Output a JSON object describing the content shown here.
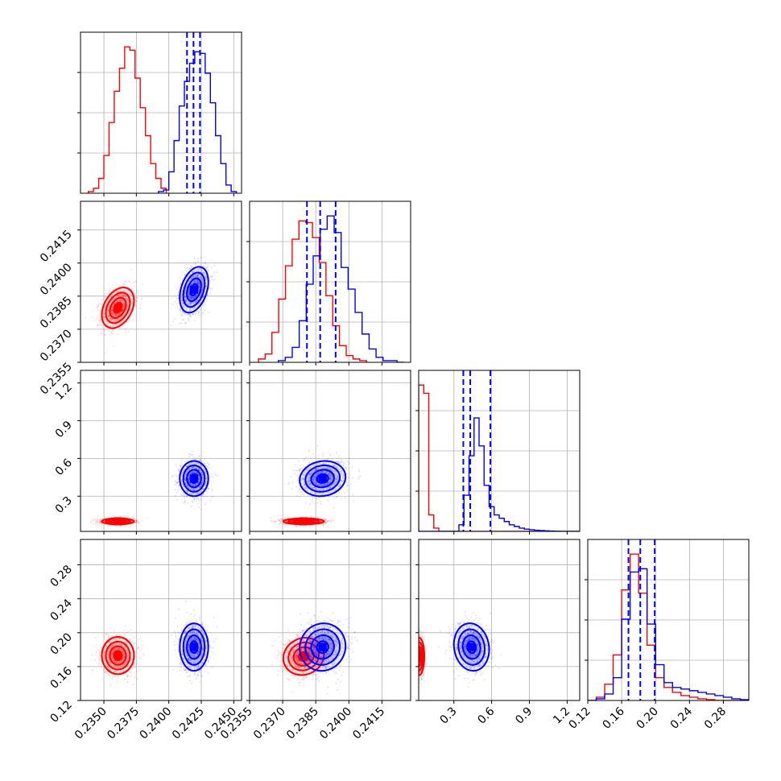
{
  "chart_data": {
    "type": "corner",
    "series": [
      {
        "name": "",
        "color": "#ff0000"
      },
      {
        "name": "",
        "color": "#0000ff"
      }
    ],
    "parameters": [
      {
        "ylim": [
          0,
          1
        ],
        "range": [
          0.2332,
          0.2456
        ],
        "ticks": [
          "0.2350",
          "0.2375",
          "0.2400",
          "0.2425",
          "0.2450"
        ],
        "tick_values": [
          0.235,
          0.2375,
          0.24,
          0.2425,
          0.245
        ]
      },
      {
        "range": [
          0.2355,
          0.2428
        ],
        "ticks": [
          "0.2355",
          "0.2370",
          "0.2385",
          "0.2400",
          "0.2415"
        ],
        "tick_values": [
          0.2355,
          0.237,
          0.2385,
          0.24,
          0.2415
        ]
      },
      {
        "range": [
          0.02,
          1.3
        ],
        "ticks": [
          "0.3",
          "0.6",
          "0.9",
          "1.2"
        ],
        "tick_values": [
          0.3,
          0.6,
          0.9,
          1.2
        ]
      },
      {
        "range": [
          0.12,
          0.31
        ],
        "ticks": [
          "0.12",
          "0.16",
          "0.20",
          "0.24",
          "0.28"
        ],
        "tick_values": [
          0.12,
          0.16,
          0.2,
          0.24,
          0.28
        ]
      }
    ],
    "histograms": [
      {
        "red": {
          "edges_range": [
            0.2338,
            0.2398
          ],
          "values": [
            1,
            3,
            9,
            23,
            43,
            62,
            76,
            89,
            87,
            70,
            52,
            35,
            18,
            9,
            3
          ]
        },
        "blue": {
          "edges_range": [
            0.2392,
            0.2452
          ],
          "values": [
            1,
            2,
            13,
            32,
            53,
            68,
            79,
            86,
            85,
            73,
            55,
            35,
            18,
            5,
            1
          ]
        },
        "quantile_lines": [
          0.2414,
          0.2419,
          0.2424
        ]
      },
      {
        "red": {
          "edges_range": [
            0.2359,
            0.2408
          ],
          "values": [
            2,
            5,
            18,
            38,
            58,
            74,
            85,
            84,
            75,
            60,
            40,
            22,
            10,
            4,
            2,
            1
          ]
        },
        "blue": {
          "edges_range": [
            0.2368,
            0.2425
          ],
          "values": [
            1,
            3,
            9,
            25,
            47,
            64,
            80,
            88,
            78,
            57,
            44,
            30,
            17,
            8,
            3,
            1,
            1,
            0
          ]
        },
        "quantile_lines": [
          0.2381,
          0.2387,
          0.2394
        ]
      },
      {
        "red": {
          "edges_range": [
            0.02,
            1.3
          ],
          "values": [
            89,
            84,
            10,
            2,
            0,
            0,
            0,
            0,
            0,
            0,
            0,
            0,
            0,
            0,
            0,
            0,
            0,
            0,
            0,
            0,
            0,
            0,
            0,
            0,
            0,
            0,
            0,
            0,
            0,
            0,
            0,
            0
          ]
        },
        "blue": {
          "edges_range": [
            0.02,
            1.3
          ],
          "values": [
            0,
            0,
            0,
            0,
            0,
            0,
            0,
            0,
            4,
            22,
            46,
            69,
            52,
            28,
            15,
            10,
            8,
            6,
            4,
            3,
            2,
            1.4,
            1,
            0.7,
            0.5,
            0.3,
            0.2,
            0.1,
            0.05,
            0,
            0,
            0
          ]
        },
        "quantile_lines": [
          0.375,
          0.43,
          0.59
        ]
      },
      {
        "red": {
          "edges_range": [
            0.12,
            0.31
          ],
          "values": [
            0,
            2,
            10,
            28,
            68,
            90,
            66,
            34,
            14,
            8,
            5,
            3,
            2,
            1,
            0.5,
            0,
            0,
            0,
            0
          ]
        },
        "blue": {
          "edges_range": [
            0.12,
            0.31
          ],
          "values": [
            0,
            1,
            4,
            14,
            50,
            79,
            81,
            47,
            22,
            11,
            8,
            7,
            6,
            5,
            4,
            3,
            2,
            1,
            0.5
          ]
        },
        "quantile_lines": [
          0.168,
          0.182,
          0.199
        ]
      }
    ],
    "blobs": [
      {
        "row": 1,
        "col": 0,
        "red": {
          "center": [
            0.23608,
            0.23797
          ],
          "sd": [
            0.00062,
            0.00046
          ],
          "rho": 0.35
        },
        "blue": {
          "center": [
            0.24194,
            0.23879
          ],
          "sd": [
            0.00055,
            0.00052
          ],
          "rho": 0.35
        }
      },
      {
        "row": 2,
        "col": 0,
        "red": {
          "center": [
            0.23608,
            0.1
          ],
          "sd": [
            0.00062,
            0.012
          ],
          "rho": 0.0
        },
        "blue": {
          "center": [
            0.24194,
            0.44
          ],
          "sd": [
            0.00055,
            0.07
          ],
          "rho": 0.0
        }
      },
      {
        "row": 2,
        "col": 1,
        "red": {
          "center": [
            0.23795,
            0.1
          ],
          "sd": [
            0.00046,
            0.012
          ],
          "rho": 0.0
        },
        "blue": {
          "center": [
            0.23881,
            0.44
          ],
          "sd": [
            0.00052,
            0.07
          ],
          "rho": 0.1
        }
      },
      {
        "row": 3,
        "col": 0,
        "red": {
          "center": [
            0.23608,
            0.173
          ],
          "sd": [
            0.00062,
            0.011
          ],
          "rho": 0.0
        },
        "blue": {
          "center": [
            0.24194,
            0.183
          ],
          "sd": [
            0.00055,
            0.014
          ],
          "rho": 0.0
        }
      },
      {
        "row": 3,
        "col": 1,
        "red": {
          "center": [
            0.23795,
            0.172
          ],
          "sd": [
            0.00046,
            0.011
          ],
          "rho": 0.1
        },
        "blue": {
          "center": [
            0.23881,
            0.183
          ],
          "sd": [
            0.00052,
            0.014
          ],
          "rho": 0.05
        }
      },
      {
        "row": 3,
        "col": 2,
        "red": {
          "center": [
            0.025,
            0.172
          ],
          "sd": [
            0.02,
            0.011
          ],
          "rho": 0.0
        },
        "blue": {
          "center": [
            0.44,
            0.183
          ],
          "sd": [
            0.07,
            0.014
          ],
          "rho": -0.1
        }
      }
    ],
    "title": "",
    "xlabel": "",
    "ylabel": "",
    "grid": true
  }
}
